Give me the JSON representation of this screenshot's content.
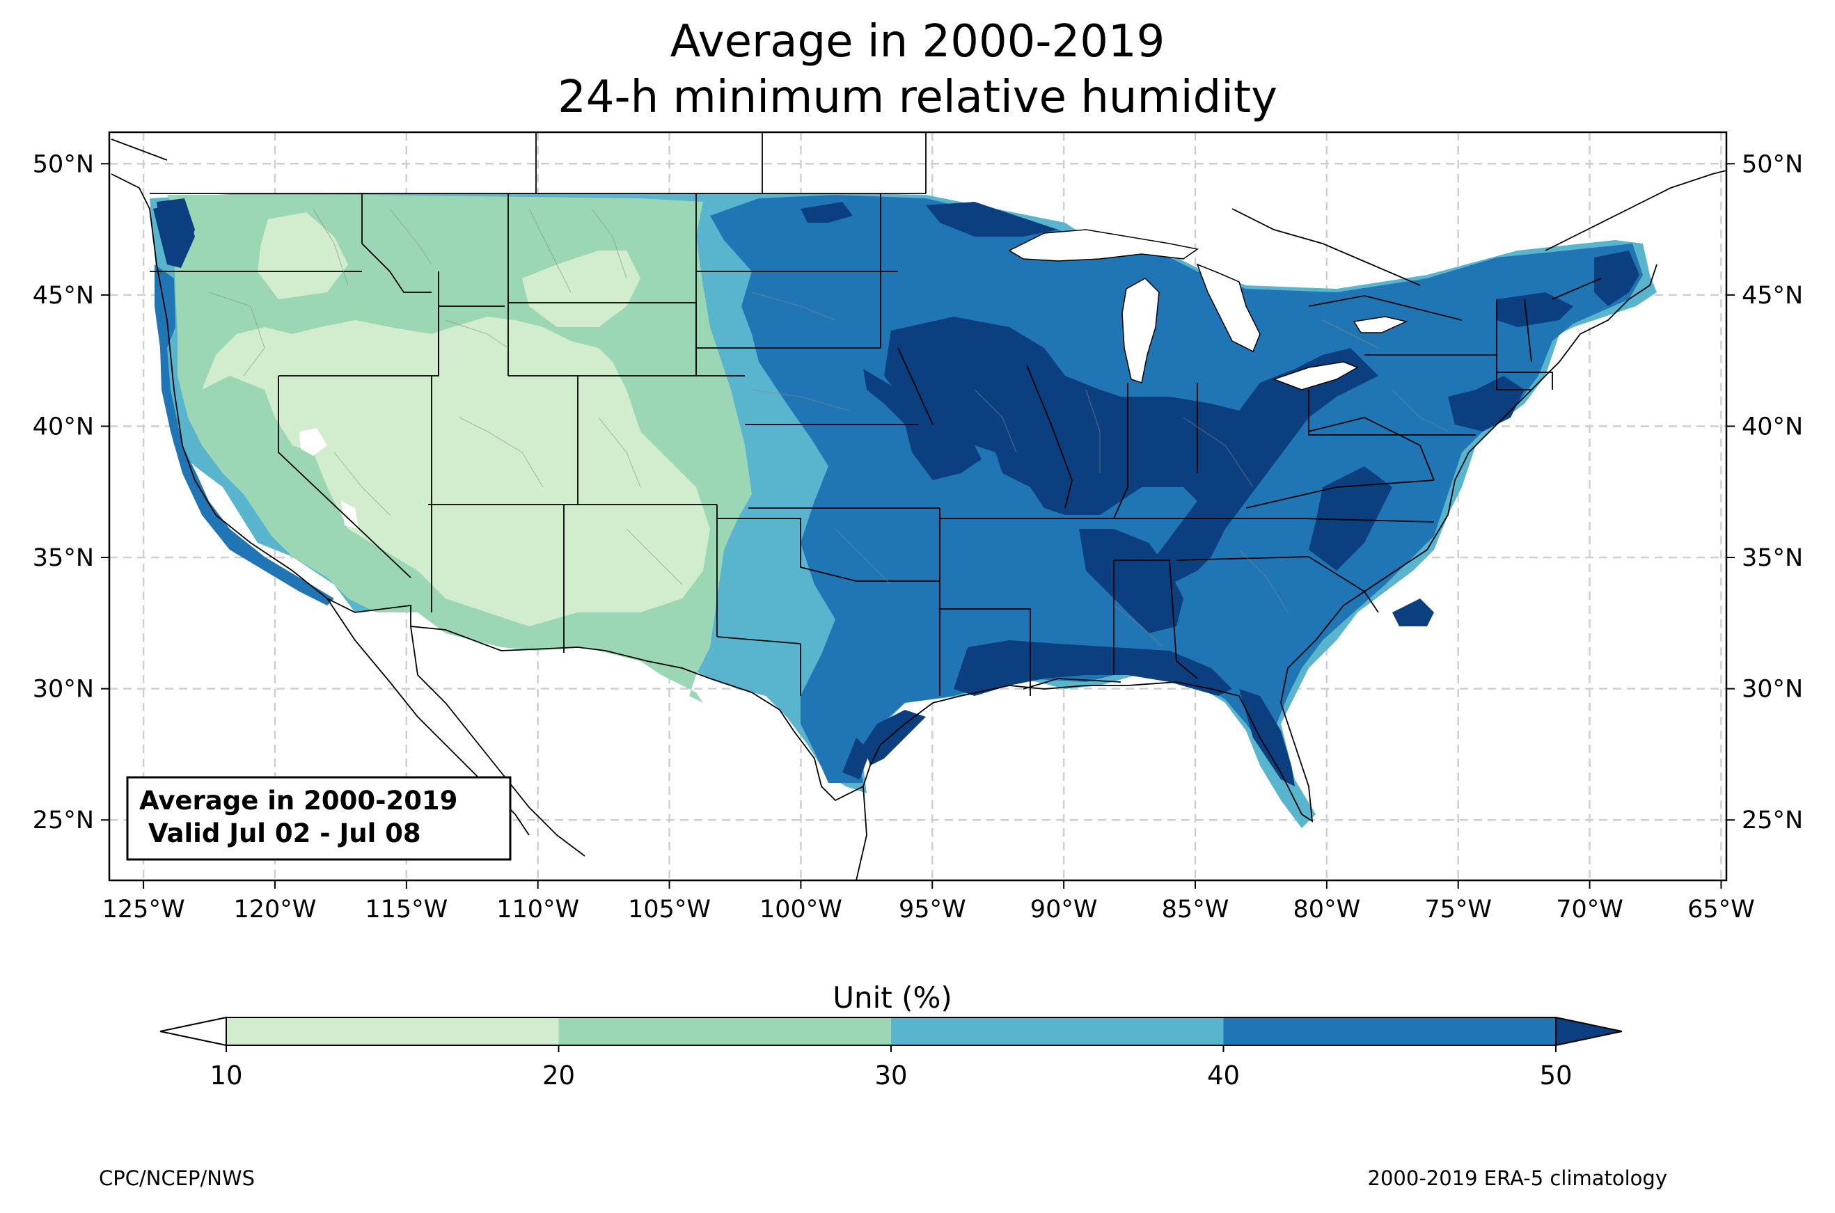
{
  "title": {
    "line1": "Average in 2000-2019",
    "line2": "24-h minimum relative humidity"
  },
  "map": {
    "lon_range": [
      -126.3,
      -64.8
    ],
    "lat_range": [
      22.7,
      51.2
    ],
    "lon_ticks": [
      {
        "value": -125,
        "label": "125°W"
      },
      {
        "value": -120,
        "label": "120°W"
      },
      {
        "value": -115,
        "label": "115°W"
      },
      {
        "value": -110,
        "label": "110°W"
      },
      {
        "value": -105,
        "label": "105°W"
      },
      {
        "value": -100,
        "label": "100°W"
      },
      {
        "value": -95,
        "label": "95°W"
      },
      {
        "value": -90,
        "label": "90°W"
      },
      {
        "value": -85,
        "label": "85°W"
      },
      {
        "value": -80,
        "label": "80°W"
      },
      {
        "value": -75,
        "label": "75°W"
      },
      {
        "value": -70,
        "label": "70°W"
      },
      {
        "value": -65,
        "label": "65°W"
      }
    ],
    "lat_ticks": [
      {
        "value": 25,
        "label": "25°N"
      },
      {
        "value": 30,
        "label": "30°N"
      },
      {
        "value": 35,
        "label": "35°N"
      },
      {
        "value": 40,
        "label": "40°N"
      },
      {
        "value": 45,
        "label": "45°N"
      },
      {
        "value": 50,
        "label": "50°N"
      }
    ],
    "gridlines": true
  },
  "infobox": {
    "line1": "Average in 2000-2019",
    "line2": " Valid Jul 02 - Jul 08"
  },
  "colorbar": {
    "label": "Unit (%)",
    "ticks": [
      "10",
      "20",
      "30",
      "40",
      "50"
    ],
    "colors": [
      "#ffffff",
      "#d2edce",
      "#9bd7b5",
      "#59b4ce",
      "#2076b4",
      "#0b3f80"
    ],
    "extend": "both"
  },
  "footer": {
    "left": "CPC/NCEP/NWS",
    "right": "2000-2019 ERA-5 climatology"
  }
}
